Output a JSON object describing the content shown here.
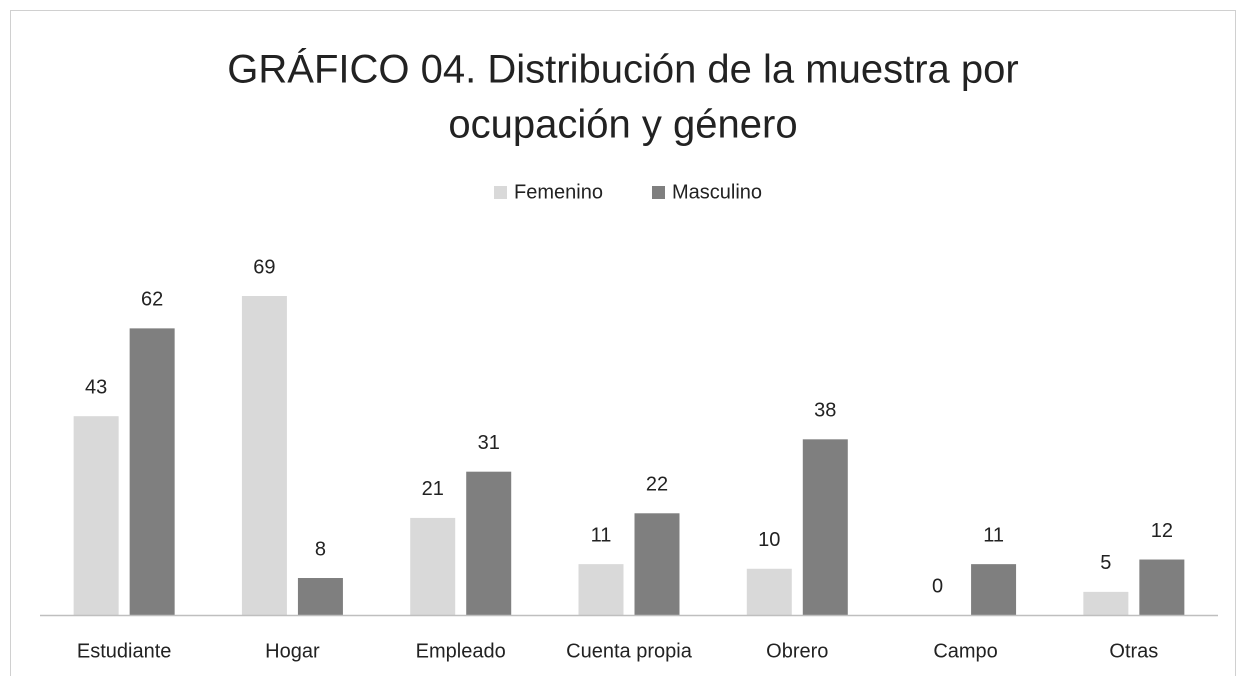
{
  "chart_data": {
    "type": "bar",
    "title": [
      "GRÁFICO 04. Distribución de la muestra por",
      "ocupación y género"
    ],
    "categories": [
      "Estudiante",
      "Hogar",
      "Empleado",
      "Cuenta propia",
      "Obrero",
      "Campo",
      "Otras"
    ],
    "series": [
      {
        "name": "Femenino",
        "color": "#d9d9d9",
        "values": [
          43,
          69,
          21,
          11,
          10,
          0,
          5
        ]
      },
      {
        "name": "Masculino",
        "color": "#7f7f7f",
        "values": [
          62,
          8,
          31,
          22,
          38,
          11,
          12
        ]
      }
    ],
    "legend": "top"
  }
}
